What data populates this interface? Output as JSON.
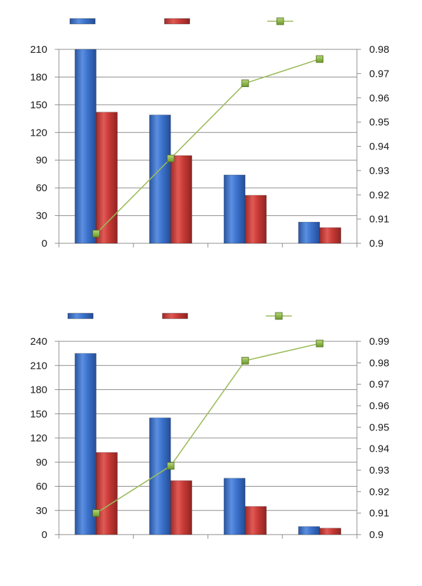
{
  "colors": {
    "bar_blue": "#3a6fc4",
    "bar_red": "#c83a36",
    "line_green": "#9bbb59",
    "marker_green": "#77a130",
    "grid": "#8c8c8c",
    "axis_text": "#1a1a1a"
  },
  "chart_data": [
    {
      "type": "bar",
      "categories": [
        "",
        "",
        "",
        ""
      ],
      "series": [
        {
          "kind": "bar",
          "axis": "left",
          "color": "#3a6fc4",
          "values": [
            210,
            139,
            74,
            23
          ]
        },
        {
          "kind": "bar",
          "axis": "left",
          "color": "#c83a36",
          "values": [
            142,
            95,
            52,
            17
          ]
        },
        {
          "kind": "line",
          "axis": "right",
          "color": "#9bbb59",
          "marker": "square",
          "values": [
            0.904,
            0.935,
            0.966,
            0.976
          ]
        }
      ],
      "left_axis": {
        "min": 0,
        "max": 210,
        "step": 30,
        "ticks": [
          "0",
          "30",
          "60",
          "90",
          "120",
          "150",
          "180",
          "210"
        ]
      },
      "right_axis": {
        "min": 0.9,
        "max": 0.98,
        "step": 0.01,
        "ticks": [
          "0.9",
          "0.91",
          "0.92",
          "0.93",
          "0.94",
          "0.95",
          "0.96",
          "0.97",
          "0.98"
        ]
      },
      "legend": {
        "position": "top",
        "entries": [
          "",
          "",
          ""
        ]
      },
      "grid": true
    },
    {
      "type": "bar",
      "categories": [
        "",
        "",
        "",
        ""
      ],
      "series": [
        {
          "kind": "bar",
          "axis": "left",
          "color": "#3a6fc4",
          "values": [
            225,
            145,
            70,
            10
          ]
        },
        {
          "kind": "bar",
          "axis": "left",
          "color": "#c83a36",
          "values": [
            102,
            67,
            35,
            8
          ]
        },
        {
          "kind": "line",
          "axis": "right",
          "color": "#9bbb59",
          "marker": "square",
          "values": [
            0.91,
            0.932,
            0.981,
            0.989
          ]
        }
      ],
      "left_axis": {
        "min": 0,
        "max": 240,
        "step": 30,
        "ticks": [
          "0",
          "30",
          "60",
          "90",
          "120",
          "150",
          "180",
          "210",
          "240"
        ]
      },
      "right_axis": {
        "min": 0.9,
        "max": 0.99,
        "step": 0.01,
        "ticks": [
          "0.9",
          "0.91",
          "0.92",
          "0.93",
          "0.94",
          "0.95",
          "0.96",
          "0.97",
          "0.98",
          "0.99"
        ]
      },
      "legend": {
        "position": "top",
        "entries": [
          "",
          "",
          ""
        ]
      },
      "grid": true
    }
  ]
}
